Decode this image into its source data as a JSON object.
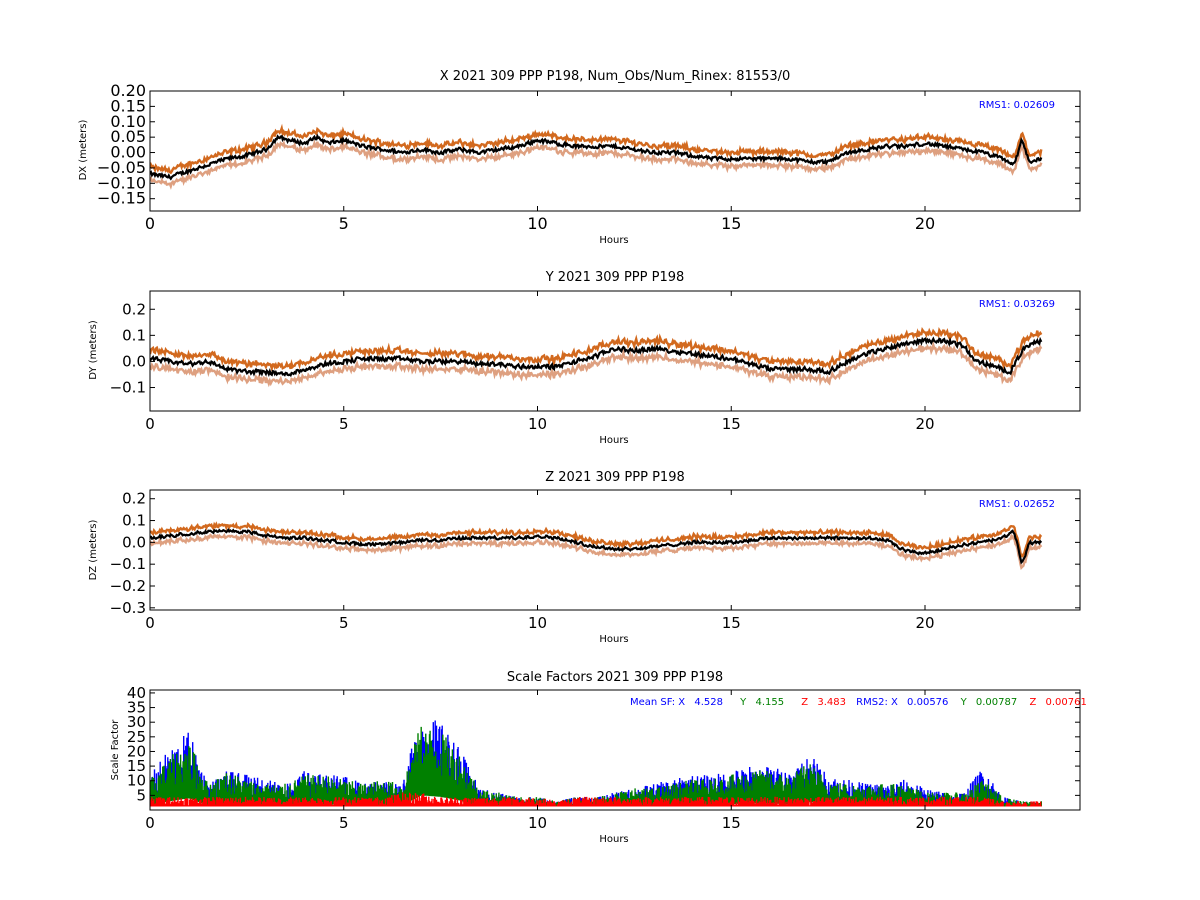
{
  "chart_data": [
    {
      "type": "line",
      "title": "X 2021 309 PPP  P198, Num_Obs/Num_Rinex: 81553/0",
      "xlabel": "Hours",
      "ylabel": "DX (meters)",
      "xlim": [
        0,
        24
      ],
      "ylim": [
        -0.19,
        0.2
      ],
      "xticks": [
        "0",
        "5",
        "10",
        "15",
        "20"
      ],
      "yticks": [
        "0.20",
        "0.15",
        "0.10",
        "0.05",
        "0.00",
        "−0.05",
        "−0.10",
        "−0.15"
      ],
      "ytick_values": [
        0.2,
        0.15,
        0.1,
        0.05,
        0.0,
        -0.05,
        -0.1,
        -0.15
      ],
      "annotation": "RMS1:  0.02609",
      "series_colors": {
        "upper": "#d2691e",
        "lower": "#dea080",
        "center": "#000000"
      },
      "band_halfwidth": 0.022,
      "x": [
        0,
        0.5,
        1,
        1.5,
        2,
        2.5,
        3,
        3.3,
        3.6,
        4,
        4.3,
        4.6,
        5,
        5.5,
        6,
        6.5,
        7,
        7.5,
        8,
        8.5,
        9,
        9.5,
        10,
        10.5,
        11,
        11.5,
        12,
        12.5,
        13,
        13.5,
        14,
        14.5,
        15,
        15.5,
        16,
        16.5,
        17,
        17.5,
        18,
        18.5,
        19,
        19.5,
        20,
        20.5,
        21,
        21.5,
        22,
        22.3,
        22.5,
        22.7,
        23
      ],
      "values": [
        -0.07,
        -0.08,
        -0.06,
        -0.04,
        -0.02,
        -0.01,
        0.01,
        0.05,
        0.04,
        0.03,
        0.05,
        0.03,
        0.04,
        0.02,
        0.01,
        0.0,
        0.01,
        0.0,
        0.01,
        0.0,
        0.01,
        0.02,
        0.04,
        0.03,
        0.02,
        0.02,
        0.02,
        0.01,
        0.0,
        0.0,
        -0.01,
        -0.02,
        -0.02,
        -0.02,
        -0.02,
        -0.02,
        -0.03,
        -0.03,
        0.0,
        0.01,
        0.02,
        0.02,
        0.03,
        0.02,
        0.01,
        0.0,
        -0.02,
        -0.04,
        0.04,
        -0.03,
        -0.02
      ]
    },
    {
      "type": "line",
      "title": "Y 2021 309 PPP  P198",
      "xlabel": "Hours",
      "ylabel": "DY (meters)",
      "xlim": [
        0,
        24
      ],
      "ylim": [
        -0.19,
        0.27
      ],
      "xticks": [
        "0",
        "5",
        "10",
        "15",
        "20"
      ],
      "yticks": [
        "0.2",
        "0.1",
        "0.0",
        "−0.1"
      ],
      "ytick_values": [
        0.2,
        0.1,
        0.0,
        -0.1
      ],
      "annotation": "RMS1:  0.03269",
      "series_colors": {
        "upper": "#d2691e",
        "lower": "#dea080",
        "center": "#000000"
      },
      "band_halfwidth": 0.03,
      "x": [
        0,
        0.5,
        1,
        1.5,
        2,
        2.5,
        3,
        3.5,
        4,
        4.5,
        5,
        5.5,
        6,
        6.5,
        7,
        7.5,
        8,
        8.5,
        9,
        9.5,
        10,
        10.5,
        11,
        11.5,
        12,
        12.5,
        13,
        13.5,
        14,
        14.5,
        15,
        15.5,
        16,
        16.5,
        17,
        17.5,
        18,
        18.5,
        19,
        19.5,
        20,
        20.5,
        21,
        21.3,
        21.6,
        22,
        22.2,
        22.5,
        22.8,
        23
      ],
      "values": [
        0.01,
        0.0,
        -0.01,
        0.0,
        -0.03,
        -0.04,
        -0.04,
        -0.05,
        -0.03,
        -0.01,
        0.0,
        0.01,
        0.01,
        0.01,
        0.0,
        0.0,
        0.0,
        -0.01,
        -0.01,
        -0.02,
        -0.02,
        -0.02,
        0.0,
        0.02,
        0.05,
        0.04,
        0.05,
        0.04,
        0.03,
        0.02,
        0.01,
        -0.01,
        -0.03,
        -0.03,
        -0.03,
        -0.04,
        0.0,
        0.03,
        0.05,
        0.07,
        0.08,
        0.08,
        0.06,
        0.0,
        -0.01,
        -0.03,
        -0.04,
        0.04,
        0.07,
        0.08
      ]
    },
    {
      "type": "line",
      "title": "Z 2021 309 PPP  P198",
      "xlabel": "Hours",
      "ylabel": "DZ (meters)",
      "xlim": [
        0,
        24
      ],
      "ylim": [
        -0.31,
        0.24
      ],
      "xticks": [
        "0",
        "5",
        "10",
        "15",
        "20"
      ],
      "yticks": [
        "0.2",
        "0.1",
        "0.0",
        "−0.1",
        "−0.2",
        "−0.3"
      ],
      "ytick_values": [
        0.2,
        0.1,
        0.0,
        -0.1,
        -0.2,
        -0.3
      ],
      "annotation": "RMS1:  0.02652",
      "series_colors": {
        "upper": "#d2691e",
        "lower": "#dea080",
        "center": "#000000"
      },
      "band_halfwidth": 0.025,
      "x": [
        0,
        0.5,
        1,
        1.5,
        2,
        2.5,
        3,
        3.5,
        4,
        4.5,
        5,
        5.5,
        6,
        6.5,
        7,
        7.5,
        8,
        8.5,
        9,
        9.5,
        10,
        10.5,
        11,
        11.5,
        12,
        12.5,
        13,
        13.5,
        14,
        14.5,
        15,
        15.5,
        16,
        16.5,
        17,
        17.5,
        18,
        18.5,
        19,
        19.5,
        20,
        20.5,
        21,
        21.5,
        22,
        22.3,
        22.5,
        22.7,
        23
      ],
      "values": [
        0.02,
        0.03,
        0.04,
        0.05,
        0.05,
        0.05,
        0.03,
        0.02,
        0.02,
        0.01,
        0.0,
        -0.01,
        -0.01,
        0.0,
        0.01,
        0.01,
        0.02,
        0.02,
        0.02,
        0.02,
        0.03,
        0.02,
        0.0,
        -0.02,
        -0.03,
        -0.03,
        -0.02,
        -0.01,
        0.0,
        0.0,
        0.0,
        0.01,
        0.02,
        0.02,
        0.02,
        0.02,
        0.02,
        0.02,
        0.01,
        -0.04,
        -0.05,
        -0.03,
        -0.01,
        0.0,
        0.02,
        0.05,
        -0.1,
        0.0,
        0.0
      ]
    },
    {
      "type": "scatter",
      "title": "Scale Factors 2021 309 PPP  P198",
      "xlabel": "Hours",
      "ylabel": "Scale Factor",
      "xlim": [
        0,
        24
      ],
      "ylim": [
        0,
        41
      ],
      "xticks": [
        "0",
        "5",
        "10",
        "15",
        "20"
      ],
      "yticks": [
        "40",
        "35",
        "30",
        "25",
        "20",
        "15",
        "10",
        "5"
      ],
      "ytick_values": [
        40,
        35,
        30,
        25,
        20,
        15,
        10,
        5
      ],
      "annotation": {
        "mean_label": "Mean SF: X",
        "mean_x": "4.528",
        "y_label": "Y",
        "mean_y": "4.155",
        "z_label": "Z",
        "mean_z": "3.483",
        "rms_label": "RMS2: X",
        "rms_x": "0.00576",
        "rms_y_label": "Y",
        "rms_y": "0.00787",
        "rms_z_label": "Z",
        "rms_z": "0.00761"
      },
      "series": [
        {
          "color": "#0000ff",
          "x": [
            0,
            0.5,
            1,
            1.5,
            2,
            2.5,
            3,
            3.5,
            4,
            4.5,
            5,
            5.5,
            6,
            6.5,
            7,
            7.5,
            8,
            8.5,
            9,
            9.5,
            10,
            10.5,
            11,
            11.5,
            12,
            12.5,
            13,
            13.5,
            14,
            14.5,
            15,
            15.5,
            16,
            16.5,
            17,
            17.5,
            18,
            18.5,
            19,
            19.5,
            20,
            20.5,
            21,
            21.5,
            22,
            22.5,
            23
          ],
          "values": [
            8,
            14,
            18,
            6,
            9,
            8,
            7,
            6,
            9,
            8,
            8,
            6,
            7,
            6,
            22,
            20,
            14,
            5,
            4,
            3,
            3,
            2,
            3,
            3,
            4,
            5,
            6,
            7,
            8,
            8,
            9,
            10,
            10,
            9,
            13,
            8,
            7,
            6,
            6,
            7,
            5,
            4,
            4,
            10,
            3,
            2,
            2
          ]
        },
        {
          "color": "#008000",
          "x": [
            0,
            0.5,
            1,
            1.5,
            2,
            2.5,
            3,
            3.5,
            4,
            4.5,
            5,
            5.5,
            6,
            6.5,
            7,
            7.5,
            8,
            8.5,
            9,
            9.5,
            10,
            10.5,
            11,
            11.5,
            12,
            12.5,
            13,
            13.5,
            14,
            14.5,
            15,
            15.5,
            16,
            16.5,
            17,
            17.5,
            18,
            18.5,
            19,
            19.5,
            20,
            20.5,
            21,
            21.5,
            22,
            22.5,
            23
          ],
          "values": [
            7,
            12,
            16,
            6,
            9,
            7,
            6,
            6,
            8,
            8,
            7,
            6,
            7,
            6,
            20,
            18,
            13,
            5,
            4,
            3,
            3,
            2,
            3,
            3,
            4,
            5,
            5,
            6,
            7,
            7,
            8,
            9,
            9,
            8,
            11,
            7,
            6,
            6,
            6,
            6,
            4,
            4,
            4,
            7,
            3,
            2,
            2
          ]
        },
        {
          "color": "#ff0000",
          "x": [
            0,
            0.5,
            1,
            1.5,
            2,
            2.5,
            3,
            3.5,
            4,
            4.5,
            5,
            5.5,
            6,
            6.5,
            7,
            7.5,
            8,
            8.5,
            9,
            9.5,
            10,
            10.5,
            11,
            11.5,
            12,
            12.5,
            13,
            13.5,
            14,
            14.5,
            15,
            15.5,
            16,
            16.5,
            17,
            17.5,
            18,
            18.5,
            19,
            19.5,
            20,
            20.5,
            21,
            21.5,
            22,
            22.5,
            23
          ],
          "values": [
            3,
            3,
            3,
            3,
            3,
            3,
            3,
            3,
            3,
            3,
            3,
            3,
            3,
            4,
            4,
            3,
            3,
            3,
            3,
            3,
            3,
            2,
            3,
            3,
            3,
            3,
            3,
            3,
            3,
            3,
            3,
            3,
            3,
            3,
            3,
            3,
            3,
            3,
            3,
            3,
            3,
            3,
            3,
            3,
            2,
            2,
            2
          ]
        }
      ]
    }
  ]
}
